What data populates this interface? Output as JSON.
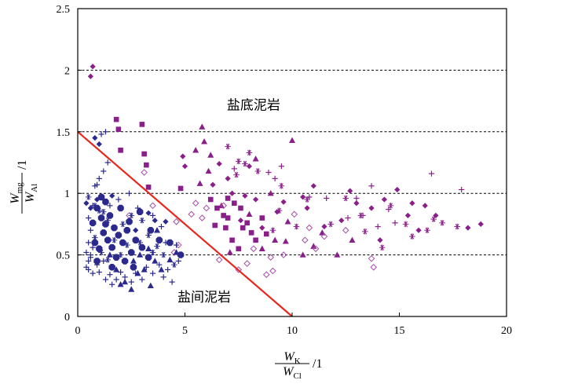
{
  "chart_data": {
    "type": "scatter",
    "xlabel": {
      "num": "W",
      "num_sub": "K",
      "den": "W",
      "den_sub": "Cl",
      "unit": "/1"
    },
    "ylabel": {
      "num": "W",
      "num_sub": "mg",
      "den": "W",
      "den_sub": "Al",
      "unit": "/1"
    },
    "xlim": [
      0,
      20
    ],
    "ylim": [
      0,
      2.5
    ],
    "x_ticks": [
      0,
      5,
      10,
      15,
      20
    ],
    "x_tick_labels": [
      "0",
      "5",
      "10",
      "15",
      "20"
    ],
    "y_ticks": [
      0,
      0.5,
      1,
      1.5,
      2,
      2.5
    ],
    "y_tick_labels": [
      "0",
      "0.5",
      "1",
      "1.5",
      "2",
      "2.5"
    ],
    "gridlines_y": [
      0.5,
      1,
      1.5,
      2
    ],
    "annotations": [
      {
        "text": "盐底泥岩",
        "x": 8.2,
        "y": 1.68
      },
      {
        "text": "盐间泥岩",
        "x": 5.9,
        "y": 0.12
      }
    ],
    "divider_line": {
      "x": [
        0,
        10
      ],
      "y": [
        1.5,
        0
      ],
      "color": "#e8261c"
    },
    "colors": {
      "navy": "#2b2a8c",
      "purple": "#8a1f8a",
      "light_purple": "#a64ea6"
    },
    "series": [
      {
        "name": "salt-bottom-diamond",
        "marker": "diamond",
        "color": "#8a1f8a",
        "points": [
          [
            0.7,
            2.03
          ],
          [
            0.6,
            1.95
          ],
          [
            4.9,
            1.3
          ],
          [
            5.0,
            1.22
          ],
          [
            6.3,
            1.07
          ],
          [
            7.2,
            1.0
          ],
          [
            7.8,
            0.98
          ],
          [
            8.3,
            0.95
          ],
          [
            9.6,
            0.93
          ],
          [
            10.5,
            0.97
          ],
          [
            11.0,
            1.06
          ],
          [
            10.7,
            0.88
          ],
          [
            11.5,
            0.73
          ],
          [
            12.3,
            0.78
          ],
          [
            12.7,
            1.02
          ],
          [
            13.0,
            0.92
          ],
          [
            13.7,
            0.88
          ],
          [
            14.3,
            0.95
          ],
          [
            14.9,
            1.03
          ],
          [
            15.6,
            0.92
          ],
          [
            16.2,
            0.9
          ],
          [
            16.7,
            0.82
          ],
          [
            18.2,
            0.72
          ],
          [
            18.8,
            0.75
          ],
          [
            6.6,
            1.24
          ],
          [
            7.0,
            1.12
          ],
          [
            8.0,
            1.22
          ],
          [
            7.6,
            0.78
          ],
          [
            8.6,
            0.72
          ],
          [
            9.3,
            0.85
          ],
          [
            14.1,
            0.62
          ],
          [
            15.4,
            0.82
          ],
          [
            15.9,
            0.7
          ]
        ]
      },
      {
        "name": "salt-bottom-square",
        "marker": "square",
        "color": "#8a1f8a",
        "points": [
          [
            1.8,
            1.6
          ],
          [
            1.9,
            1.52
          ],
          [
            2.0,
            1.35
          ],
          [
            3.0,
            1.56
          ],
          [
            3.1,
            1.32
          ],
          [
            3.2,
            1.23
          ],
          [
            3.3,
            1.05
          ],
          [
            4.8,
            1.04
          ],
          [
            6.2,
            0.95
          ],
          [
            6.5,
            0.88
          ],
          [
            6.8,
            0.82
          ],
          [
            7.0,
            0.8
          ],
          [
            7.3,
            0.92
          ],
          [
            7.6,
            0.88
          ],
          [
            7.9,
            0.76
          ],
          [
            8.1,
            0.68
          ],
          [
            8.3,
            0.62
          ],
          [
            6.9,
            0.72
          ],
          [
            7.2,
            0.62
          ],
          [
            7.5,
            0.55
          ],
          [
            7.7,
            0.72
          ],
          [
            6.4,
            0.74
          ],
          [
            8.6,
            0.8
          ],
          [
            8.8,
            0.67
          ],
          [
            7.0,
            0.96
          ]
        ]
      },
      {
        "name": "salt-bottom-triangle",
        "marker": "triangle",
        "color": "#8a1f8a",
        "points": [
          [
            5.8,
            1.54
          ],
          [
            5.5,
            1.35
          ],
          [
            5.9,
            1.42
          ],
          [
            6.2,
            1.31
          ],
          [
            6.1,
            1.18
          ],
          [
            5.7,
            1.08
          ],
          [
            8.3,
            1.28
          ],
          [
            10.0,
            1.43
          ],
          [
            9.2,
            0.62
          ],
          [
            8.6,
            0.55
          ],
          [
            9.7,
            0.61
          ],
          [
            10.5,
            0.5
          ],
          [
            11.0,
            0.57
          ],
          [
            12.1,
            0.5
          ],
          [
            7.1,
            0.52
          ],
          [
            6.7,
            0.9
          ],
          [
            9.0,
            1.0
          ],
          [
            9.8,
            0.77
          ],
          [
            11.4,
            0.68
          ],
          [
            12.8,
            0.62
          ],
          [
            8.0,
            0.83
          ]
        ]
      },
      {
        "name": "salt-bottom-asterisk",
        "marker": "asterisk",
        "color": "#8a1f8a",
        "points": [
          [
            7.0,
            1.38
          ],
          [
            7.4,
            1.15
          ],
          [
            7.8,
            1.24
          ],
          [
            8.0,
            1.33
          ],
          [
            8.4,
            1.18
          ],
          [
            7.5,
            1.26
          ],
          [
            9.5,
            1.06
          ],
          [
            10.7,
            0.95
          ],
          [
            12.5,
            0.96
          ],
          [
            13.2,
            0.82
          ],
          [
            14.6,
            0.9
          ],
          [
            15.3,
            0.75
          ],
          [
            15.6,
            0.65
          ],
          [
            16.6,
            0.79
          ],
          [
            17.0,
            0.76
          ],
          [
            17.7,
            0.73
          ],
          [
            16.3,
            0.7
          ],
          [
            9.1,
            0.7
          ],
          [
            9.4,
            0.86
          ],
          [
            10.2,
            0.73
          ],
          [
            11.8,
            0.75
          ],
          [
            13.4,
            0.69
          ],
          [
            14.2,
            0.56
          ]
        ]
      },
      {
        "name": "salt-bottom-plus",
        "marker": "plus",
        "color": "#8a1f8a",
        "points": [
          [
            7.3,
            1.2
          ],
          [
            8.9,
            1.17
          ],
          [
            9.2,
            1.12
          ],
          [
            9.5,
            1.22
          ],
          [
            10.8,
            0.97
          ],
          [
            11.6,
            0.96
          ],
          [
            13.0,
            0.96
          ],
          [
            13.3,
            0.82
          ],
          [
            14.5,
            0.87
          ],
          [
            16.5,
            1.16
          ],
          [
            17.9,
            1.03
          ],
          [
            13.7,
            1.06
          ],
          [
            14.0,
            0.73
          ],
          [
            12.6,
            0.8
          ],
          [
            14.8,
            0.76
          ]
        ]
      },
      {
        "name": "salt-bottom-hollow-diamond",
        "marker": "hollow-diamond",
        "color": "#a64ea6",
        "points": [
          [
            3.1,
            1.17
          ],
          [
            3.5,
            0.9
          ],
          [
            4.6,
            0.77
          ],
          [
            5.3,
            0.83
          ],
          [
            6.0,
            0.88
          ],
          [
            5.8,
            0.8
          ],
          [
            4.7,
            0.58
          ],
          [
            4.5,
            0.52
          ],
          [
            9.0,
            0.48
          ],
          [
            9.6,
            0.5
          ],
          [
            10.8,
            0.72
          ],
          [
            11.1,
            0.55
          ],
          [
            11.5,
            0.65
          ],
          [
            12.5,
            0.7
          ],
          [
            8.2,
            0.55
          ],
          [
            6.6,
            0.46
          ],
          [
            7.9,
            0.43
          ],
          [
            9.1,
            0.37
          ],
          [
            8.8,
            0.34
          ],
          [
            7.5,
            0.38
          ],
          [
            10.1,
            0.83
          ],
          [
            10.6,
            0.62
          ],
          [
            13.7,
            0.47
          ],
          [
            13.8,
            0.4
          ],
          [
            6.8,
            0.9
          ],
          [
            5.5,
            0.92
          ],
          [
            2.4,
            0.82
          ]
        ]
      },
      {
        "name": "salt-middle-hexagon",
        "marker": "hexagon",
        "color": "#2b2a8c",
        "points": [
          [
            0.9,
            0.88
          ],
          [
            1.1,
            0.8
          ],
          [
            1.3,
            0.75
          ],
          [
            1.5,
            0.82
          ],
          [
            1.7,
            0.72
          ],
          [
            1.2,
            0.68
          ],
          [
            1.4,
            0.62
          ],
          [
            1.9,
            0.66
          ],
          [
            2.1,
            0.6
          ],
          [
            2.3,
            0.7
          ],
          [
            1.6,
            0.56
          ],
          [
            1.0,
            0.55
          ],
          [
            0.8,
            0.6
          ],
          [
            2.5,
            0.52
          ],
          [
            2.7,
            0.62
          ],
          [
            1.8,
            0.48
          ],
          [
            2.2,
            0.45
          ],
          [
            3.0,
            0.56
          ],
          [
            2.9,
            0.85
          ],
          [
            2.0,
            0.88
          ],
          [
            3.4,
            0.7
          ],
          [
            3.8,
            0.62
          ],
          [
            4.3,
            0.6
          ],
          [
            4.8,
            0.5
          ],
          [
            1.3,
            0.93
          ],
          [
            1.1,
            0.97
          ],
          [
            0.7,
            0.76
          ],
          [
            2.6,
            0.4
          ],
          [
            3.3,
            0.48
          ],
          [
            2.4,
            0.77
          ],
          [
            1.6,
            0.4
          ],
          [
            0.9,
            0.45
          ]
        ]
      },
      {
        "name": "salt-middle-cross-dense",
        "marker": "plus",
        "color": "#2b2a8c",
        "points": [
          [
            0.4,
            0.4
          ],
          [
            0.5,
            0.38
          ],
          [
            0.6,
            0.48
          ],
          [
            0.7,
            0.35
          ],
          [
            0.9,
            0.42
          ],
          [
            1.0,
            0.36
          ],
          [
            1.2,
            0.45
          ],
          [
            1.3,
            0.3
          ],
          [
            1.5,
            0.34
          ],
          [
            1.6,
            0.26
          ],
          [
            1.8,
            0.3
          ],
          [
            2.0,
            0.36
          ],
          [
            2.2,
            0.32
          ],
          [
            2.5,
            0.28
          ],
          [
            2.7,
            0.35
          ],
          [
            3.0,
            0.3
          ],
          [
            3.2,
            0.4
          ],
          [
            3.5,
            0.35
          ],
          [
            3.8,
            0.42
          ],
          [
            4.0,
            0.32
          ],
          [
            4.2,
            0.38
          ],
          [
            4.4,
            0.28
          ],
          [
            4.7,
            0.45
          ],
          [
            0.5,
            0.6
          ],
          [
            0.6,
            0.7
          ],
          [
            0.5,
            0.8
          ],
          [
            0.7,
            0.9
          ],
          [
            0.8,
            1.06
          ],
          [
            0.9,
            1.07
          ],
          [
            1.0,
            1.12
          ],
          [
            1.2,
            1.18
          ],
          [
            1.4,
            1.25
          ],
          [
            1.3,
            1.5
          ],
          [
            1.1,
            1.48
          ],
          [
            1.5,
            0.9
          ],
          [
            1.9,
            0.95
          ],
          [
            2.8,
            0.88
          ],
          [
            3.5,
            0.82
          ],
          [
            3.9,
            0.73
          ],
          [
            4.1,
            0.6
          ],
          [
            4.6,
            0.58
          ],
          [
            2.4,
            1.0
          ],
          [
            0.6,
            0.5
          ],
          [
            0.7,
            0.56
          ],
          [
            0.4,
            0.52
          ],
          [
            0.5,
            0.45
          ]
        ]
      },
      {
        "name": "salt-middle-asterisk",
        "marker": "asterisk",
        "color": "#2b2a8c",
        "points": [
          [
            0.5,
            0.97
          ],
          [
            0.8,
            0.9
          ],
          [
            1.0,
            0.86
          ],
          [
            1.2,
            0.85
          ],
          [
            1.4,
            0.78
          ],
          [
            2.1,
            0.75
          ],
          [
            2.5,
            0.82
          ],
          [
            3.0,
            0.78
          ],
          [
            3.3,
            0.66
          ],
          [
            3.7,
            0.57
          ],
          [
            4.0,
            0.5
          ],
          [
            4.5,
            0.42
          ],
          [
            1.7,
            0.62
          ],
          [
            2.0,
            0.5
          ],
          [
            2.3,
            0.58
          ],
          [
            2.9,
            0.6
          ],
          [
            3.5,
            0.52
          ],
          [
            1.1,
            0.52
          ],
          [
            1.4,
            0.46
          ],
          [
            0.8,
            0.64
          ]
        ]
      },
      {
        "name": "salt-middle-triangle",
        "marker": "triangle",
        "color": "#2b2a8c",
        "points": [
          [
            2.2,
            0.28
          ],
          [
            2.5,
            0.22
          ],
          [
            2.0,
            0.26
          ],
          [
            2.8,
            0.35
          ],
          [
            3.4,
            0.25
          ],
          [
            3.1,
            0.38
          ],
          [
            2.6,
            0.45
          ],
          [
            2.9,
            0.5
          ],
          [
            3.6,
            0.45
          ],
          [
            3.9,
            0.38
          ],
          [
            4.3,
            0.46
          ],
          [
            4.6,
            0.52
          ],
          [
            3.3,
            0.55
          ],
          [
            1.8,
            0.38
          ],
          [
            3.7,
            0.7
          ],
          [
            1.5,
            0.5
          ]
        ]
      },
      {
        "name": "salt-middle-diamond",
        "marker": "diamond",
        "color": "#2b2a8c",
        "points": [
          [
            0.4,
            0.92
          ],
          [
            0.6,
            0.88
          ],
          [
            0.9,
            0.95
          ],
          [
            1.6,
            0.98
          ],
          [
            3.3,
            0.84
          ],
          [
            4.1,
            0.77
          ],
          [
            2.7,
            0.7
          ],
          [
            3.6,
            0.78
          ],
          [
            0.8,
            1.45
          ],
          [
            1.0,
            1.4
          ]
        ]
      }
    ]
  }
}
